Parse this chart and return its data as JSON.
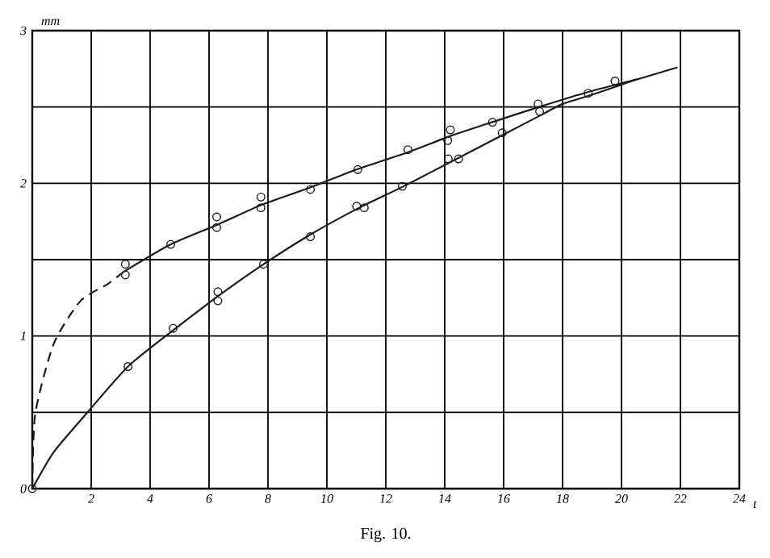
{
  "chart_data": {
    "type": "scatter",
    "xlabel": "t",
    "ylabel": "mm",
    "annotations": [
      "Fig. 10."
    ],
    "xlim": [
      0,
      24
    ],
    "ylim": [
      0,
      3
    ],
    "xticks": [
      2,
      4,
      6,
      8,
      10,
      12,
      14,
      16,
      18,
      20,
      22,
      24
    ],
    "yticks": [
      0,
      {
        "value": 0.5,
        "label": null
      },
      1,
      {
        "value": 1.5,
        "label": null
      },
      2,
      {
        "value": 2.5,
        "label": null
      },
      3
    ],
    "grid": true,
    "series": [
      {
        "type": "line",
        "line_style": "dashed",
        "marker": "none",
        "color": "#1a1a1a",
        "x": [
          0,
          0.1,
          0.73,
          1.64,
          2.56,
          3.1
        ],
        "values": [
          0,
          0.49,
          0.95,
          1.23,
          1.34,
          1.42
        ]
      },
      {
        "type": "line",
        "line_style": "solid",
        "marker": "none",
        "color": "#1a1a1a",
        "x": [
          3.1,
          4.7,
          6.3,
          7.8,
          9.4,
          11,
          12.7,
          14.2,
          15.6,
          17.2,
          18.9,
          20.5,
          21.9
        ],
        "values": [
          1.42,
          1.6,
          1.73,
          1.86,
          1.97,
          2.09,
          2.2,
          2.31,
          2.4,
          2.5,
          2.6,
          2.68,
          2.76
        ]
      },
      {
        "type": "line",
        "line_style": "solid",
        "marker": "none",
        "color": "#1a1a1a",
        "x": [
          0,
          0.73,
          1.83,
          3.25,
          4.8,
          6.3,
          7.85,
          9.4,
          11.1,
          12.6,
          14.3,
          16,
          17.3,
          18,
          19,
          20.5
        ],
        "values": [
          0,
          0.24,
          0.49,
          0.8,
          1.04,
          1.26,
          1.47,
          1.66,
          1.84,
          1.98,
          2.15,
          2.32,
          2.45,
          2.52,
          2.58,
          2.68
        ]
      },
      {
        "type": "scatter",
        "marker": "circle",
        "color": "#1a1a1a",
        "x": [
          0,
          3.16,
          3.16,
          4.7,
          6.26,
          6.26,
          7.76,
          7.76,
          9.44,
          11.05,
          12.75,
          14.19,
          14.1,
          15.62,
          17.17,
          18.87,
          19.78
        ],
        "values": [
          0,
          1.47,
          1.4,
          1.6,
          1.78,
          1.71,
          1.91,
          1.84,
          1.96,
          2.09,
          2.22,
          2.35,
          2.28,
          2.4,
          2.52,
          2.59,
          2.67
        ]
      },
      {
        "type": "scatter",
        "marker": "circle",
        "color": "#1a1a1a",
        "x": [
          3.25,
          4.78,
          6.3,
          6.3,
          7.85,
          9.44,
          11.01,
          11.27,
          12.56,
          14.12,
          14.47,
          15.95,
          17.22
        ],
        "values": [
          0.8,
          1.05,
          1.29,
          1.23,
          1.47,
          1.65,
          1.85,
          1.84,
          1.98,
          2.16,
          2.16,
          2.33,
          2.47
        ]
      }
    ]
  }
}
